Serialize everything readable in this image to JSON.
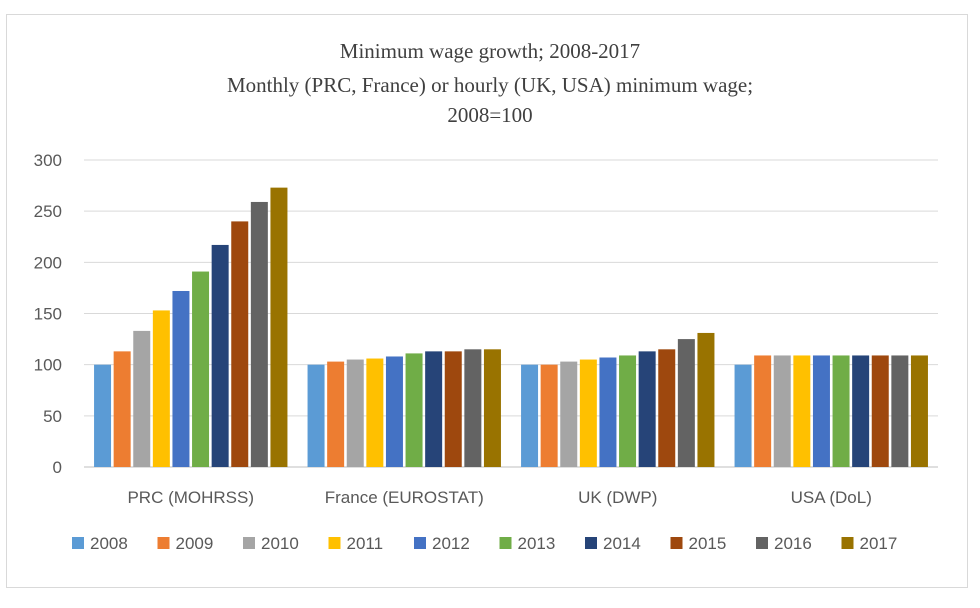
{
  "chart_data": {
    "type": "bar",
    "title": "Minimum  wage growth; 2008-2017",
    "subtitle_line1": "Monthly (PRC,  France) or hourly (UK,  USA) minimum   wage;",
    "subtitle_line2": "2008=100",
    "categories": [
      "PRC (MOHRSS)",
      "France (EUROSTAT)",
      "UK (DWP)",
      "USA (DoL)"
    ],
    "ylim": [
      0,
      300
    ],
    "yticks": [
      0,
      50,
      100,
      150,
      200,
      250,
      300
    ],
    "grid": true,
    "legend_position": "bottom",
    "series": [
      {
        "name": "2008",
        "color": "#5b9bd5",
        "values": [
          100,
          100,
          100,
          100
        ]
      },
      {
        "name": "2009",
        "color": "#ed7d31",
        "values": [
          113,
          103,
          100,
          109
        ]
      },
      {
        "name": "2010",
        "color": "#a5a5a5",
        "values": [
          133,
          105,
          103,
          109
        ]
      },
      {
        "name": "2011",
        "color": "#ffc000",
        "values": [
          153,
          106,
          105,
          109
        ]
      },
      {
        "name": "2012",
        "color": "#4472c4",
        "values": [
          172,
          108,
          107,
          109
        ]
      },
      {
        "name": "2013",
        "color": "#70ad47",
        "values": [
          191,
          111,
          109,
          109
        ]
      },
      {
        "name": "2014",
        "color": "#264478",
        "values": [
          217,
          113,
          113,
          109
        ]
      },
      {
        "name": "2015",
        "color": "#9e480e",
        "values": [
          240,
          113,
          115,
          109
        ]
      },
      {
        "name": "2016",
        "color": "#636363",
        "values": [
          259,
          115,
          125,
          109
        ]
      },
      {
        "name": "2017",
        "color": "#997300",
        "values": [
          273,
          115,
          131,
          109
        ]
      }
    ]
  }
}
